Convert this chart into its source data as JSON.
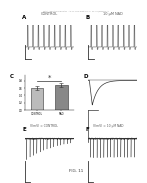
{
  "header_text": "Patent Application Publication   Apr. 23, 2009 Sheet 7 of 11   US 2009/0099413 A1",
  "fig_label": "FIG. 11",
  "panel_labels": [
    "A",
    "B",
    "C",
    "D",
    "E",
    "F"
  ],
  "panel_A_title": "CONTROL",
  "panel_B_title": "10 μM NAD",
  "panel_E_title": "V(mV) = CONTROL",
  "panel_F_title": "V(mV) = 10 μM NAD",
  "background_color": "#ffffff",
  "spike_color": "#444444",
  "bar_color_control": "#bbbbbb",
  "bar_color_nad": "#888888",
  "n_spikes_AB": 9,
  "n_spikes_EF": 14,
  "figure_dpi": 100
}
